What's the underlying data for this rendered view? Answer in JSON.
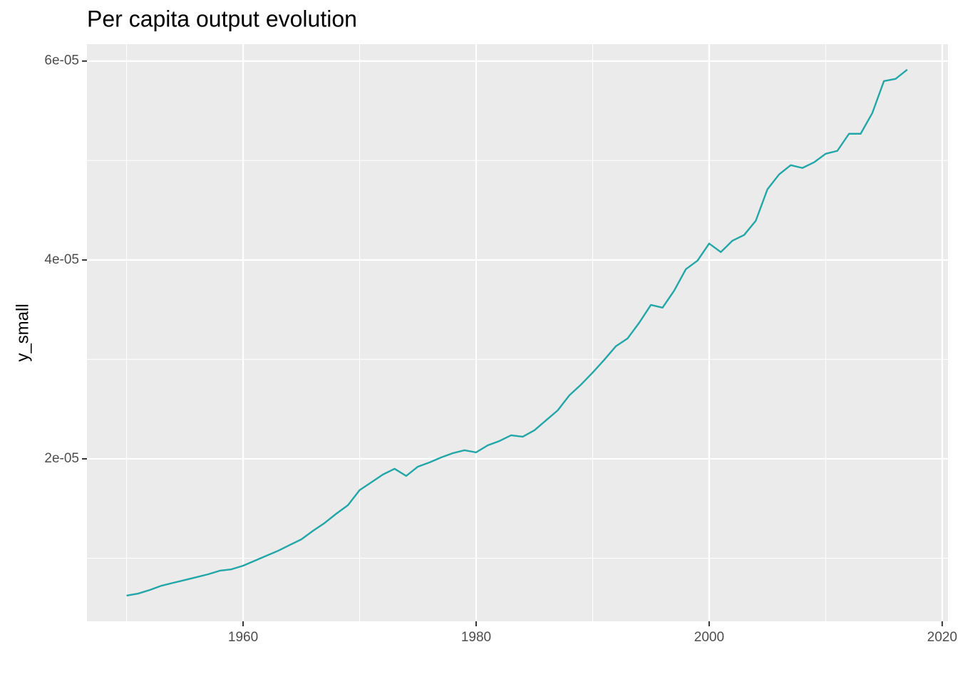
{
  "chart_data": {
    "type": "line",
    "title": "Per capita output evolution",
    "y_label": "y_small",
    "x": [
      1950,
      1951,
      1952,
      1953,
      1954,
      1955,
      1956,
      1957,
      1958,
      1959,
      1960,
      1961,
      1962,
      1963,
      1964,
      1965,
      1966,
      1967,
      1968,
      1969,
      1970,
      1971,
      1972,
      1973,
      1974,
      1975,
      1976,
      1977,
      1978,
      1979,
      1980,
      1981,
      1982,
      1983,
      1984,
      1985,
      1986,
      1987,
      1988,
      1989,
      1990,
      1991,
      1992,
      1993,
      1994,
      1995,
      1996,
      1997,
      1998,
      1999,
      2000,
      2001,
      2002,
      2003,
      2004,
      2005,
      2006,
      2007,
      2008,
      2009,
      2010,
      2011,
      2012,
      2013,
      2014,
      2015,
      2016,
      2017
    ],
    "values": [
      6.24e-06,
      6.45e-06,
      6.81e-06,
      7.24e-06,
      7.53e-06,
      7.81e-06,
      8.1e-06,
      8.39e-06,
      8.75e-06,
      8.89e-06,
      9.25e-06,
      9.75e-06,
      1.025e-05,
      1.075e-05,
      1.133e-05,
      1.19e-05,
      1.276e-05,
      1.355e-05,
      1.448e-05,
      1.534e-05,
      1.685e-05,
      1.763e-05,
      1.842e-05,
      1.9e-05,
      1.828e-05,
      1.921e-05,
      1.964e-05,
      2.014e-05,
      2.057e-05,
      2.086e-05,
      2.065e-05,
      2.136e-05,
      2.179e-05,
      2.237e-05,
      2.222e-05,
      2.287e-05,
      2.387e-05,
      2.487e-05,
      2.638e-05,
      2.746e-05,
      2.867e-05,
      2.996e-05,
      3.133e-05,
      3.211e-05,
      3.369e-05,
      3.548e-05,
      3.52e-05,
      3.692e-05,
      3.907e-05,
      3.993e-05,
      4.165e-05,
      4.079e-05,
      4.194e-05,
      4.251e-05,
      4.394e-05,
      4.71e-05,
      4.86e-05,
      4.953e-05,
      4.925e-05,
      4.982e-05,
      5.068e-05,
      5.097e-05,
      5.269e-05,
      5.269e-05,
      5.477e-05,
      5.799e-05,
      5.821e-05,
      5.914e-05
    ],
    "color": "#22a6a8",
    "xlim": [
      1946.6,
      2020.5
    ],
    "xticks": [
      1960,
      1980,
      2000,
      2020
    ],
    "xminor": [
      1950,
      1970,
      1990,
      2010
    ],
    "ylim": [
      3.66e-06,
      6.17e-05
    ],
    "yticks": [
      {
        "value": 2e-05,
        "label": "2e-05"
      },
      {
        "value": 4e-05,
        "label": "4e-05"
      },
      {
        "value": 6e-05,
        "label": "6e-05"
      }
    ],
    "yminor": [
      1e-05,
      3e-05,
      5e-05
    ],
    "grid": true
  }
}
